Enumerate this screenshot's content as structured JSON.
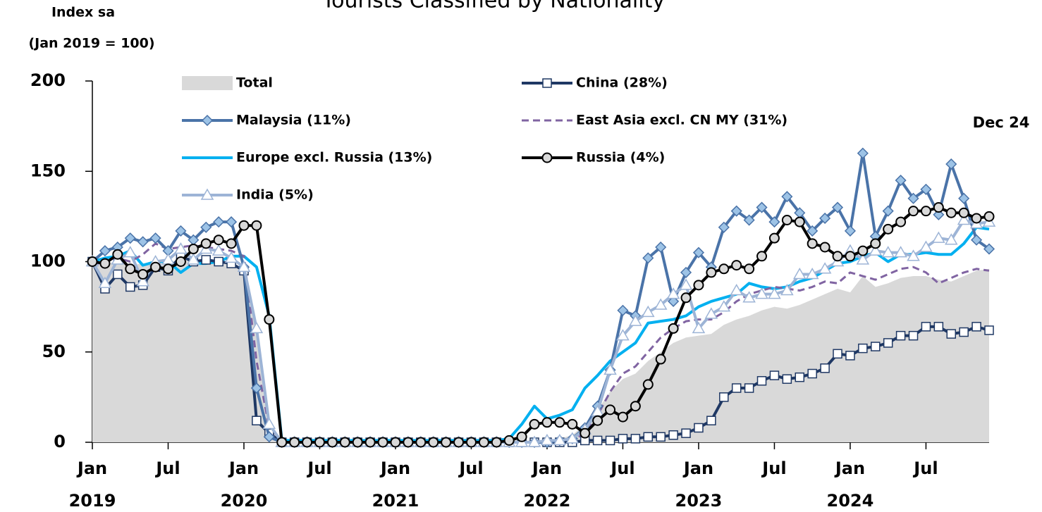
{
  "chart_data": {
    "type": "line",
    "title": "Tourists Classified by Nationality",
    "ylabel": [
      "Index sa",
      "(Jan 2019 = 100)"
    ],
    "annotation": "Dec 24",
    "x": [
      "2019-01",
      "2019-02",
      "2019-03",
      "2019-04",
      "2019-05",
      "2019-06",
      "2019-07",
      "2019-08",
      "2019-09",
      "2019-10",
      "2019-11",
      "2019-12",
      "2020-01",
      "2020-02",
      "2020-03",
      "2020-04",
      "2020-05",
      "2020-06",
      "2020-07",
      "2020-08",
      "2020-09",
      "2020-10",
      "2020-11",
      "2020-12",
      "2021-01",
      "2021-02",
      "2021-03",
      "2021-04",
      "2021-05",
      "2021-06",
      "2021-07",
      "2021-08",
      "2021-09",
      "2021-10",
      "2021-11",
      "2021-12",
      "2022-01",
      "2022-02",
      "2022-03",
      "2022-04",
      "2022-05",
      "2022-06",
      "2022-07",
      "2022-08",
      "2022-09",
      "2022-10",
      "2022-11",
      "2022-12",
      "2023-01",
      "2023-02",
      "2023-03",
      "2023-04",
      "2023-05",
      "2023-06",
      "2023-07",
      "2023-08",
      "2023-09",
      "2023-10",
      "2023-11",
      "2023-12",
      "2024-01",
      "2024-02",
      "2024-03",
      "2024-04",
      "2024-05",
      "2024-06",
      "2024-07",
      "2024-08",
      "2024-09",
      "2024-10",
      "2024-11",
      "2024-12"
    ],
    "xticks": [
      {
        "value": "2019-01",
        "label": "Jan"
      },
      {
        "value": "2019-07",
        "label": "Jul"
      },
      {
        "value": "2020-01",
        "label": "Jan"
      },
      {
        "value": "2020-07",
        "label": "Jul"
      },
      {
        "value": "2021-01",
        "label": "Jan"
      },
      {
        "value": "2021-07",
        "label": "Jul"
      },
      {
        "value": "2022-01",
        "label": "Jan"
      },
      {
        "value": "2022-07",
        "label": "Jul"
      },
      {
        "value": "2023-01",
        "label": "Jan"
      },
      {
        "value": "2023-07",
        "label": "Jul"
      },
      {
        "value": "2024-01",
        "label": "Jan"
      },
      {
        "value": "2024-07",
        "label": "Jul"
      }
    ],
    "year_labels": [
      {
        "value": "2019-01",
        "label": "2019"
      },
      {
        "value": "2020-01",
        "label": "2020"
      },
      {
        "value": "2021-01",
        "label": "2021"
      },
      {
        "value": "2022-01",
        "label": "2022"
      },
      {
        "value": "2023-01",
        "label": "2023"
      },
      {
        "value": "2024-01",
        "label": "2024"
      }
    ],
    "ylim": [
      0,
      200
    ],
    "yticks": [
      0,
      50,
      100,
      150,
      200
    ],
    "series": [
      {
        "name": "Total",
        "kind": "area",
        "color": "#d9d9d9",
        "values": [
          100,
          99,
          100,
          98,
          99,
          100,
          100,
          101,
          100,
          100,
          99,
          99,
          95,
          60,
          10,
          0,
          0,
          0,
          0,
          0,
          0,
          0,
          0,
          0,
          0,
          0,
          0,
          0,
          0,
          0,
          0,
          0,
          0,
          1,
          1,
          1,
          1,
          2,
          4,
          10,
          18,
          28,
          35,
          38,
          45,
          50,
          55,
          58,
          59,
          60,
          65,
          68,
          70,
          73,
          75,
          74,
          76,
          79,
          82,
          85,
          83,
          92,
          86,
          88,
          91,
          92,
          92,
          90,
          89,
          92,
          95,
          96
        ]
      },
      {
        "name": "China (28%)",
        "marker": "square",
        "color": "#1f3864",
        "values": [
          100,
          85,
          93,
          86,
          87,
          97,
          95,
          103,
          100,
          101,
          100,
          99,
          95,
          12,
          5,
          0,
          0,
          0,
          0,
          0,
          0,
          0,
          0,
          0,
          0,
          0,
          0,
          0,
          0,
          0,
          0,
          0,
          0,
          0,
          0,
          0,
          0,
          0,
          0,
          1,
          1,
          1,
          2,
          2,
          3,
          3,
          4,
          5,
          8,
          12,
          25,
          30,
          30,
          34,
          37,
          35,
          36,
          38,
          41,
          49,
          48,
          52,
          53,
          55,
          59,
          59,
          64,
          64,
          60,
          61,
          64,
          62
        ]
      },
      {
        "name": "Malaysia (11%)",
        "marker": "diamond",
        "color": "#4a73a8",
        "values": [
          100,
          106,
          108,
          113,
          111,
          113,
          106,
          117,
          112,
          119,
          122,
          122,
          97,
          30,
          3,
          0,
          0,
          0,
          0,
          0,
          0,
          0,
          0,
          0,
          0,
          0,
          0,
          0,
          0,
          0,
          0,
          0,
          0,
          0,
          0,
          0,
          0,
          1,
          2,
          8,
          20,
          40,
          73,
          70,
          102,
          108,
          78,
          94,
          105,
          97,
          119,
          128,
          123,
          130,
          122,
          136,
          127,
          117,
          124,
          130,
          117,
          160,
          114,
          128,
          145,
          135,
          140,
          126,
          154,
          135,
          112,
          107
        ]
      },
      {
        "name": "East Asia excl. CN MY (31%)",
        "marker": "none",
        "dashed": true,
        "color": "#8064a2",
        "values": [
          100,
          98,
          102,
          100,
          104,
          110,
          107,
          108,
          109,
          108,
          107,
          106,
          103,
          45,
          8,
          0,
          0,
          0,
          0,
          0,
          0,
          0,
          0,
          0,
          0,
          0,
          0,
          0,
          0,
          0,
          0,
          0,
          0,
          0,
          0,
          0,
          0,
          0,
          1,
          5,
          15,
          28,
          38,
          42,
          50,
          58,
          63,
          67,
          68,
          68,
          72,
          78,
          82,
          84,
          86,
          85,
          84,
          86,
          89,
          88,
          94,
          92,
          90,
          93,
          96,
          97,
          94,
          88,
          91,
          94,
          96,
          95
        ]
      },
      {
        "name": "Europe excl. Russia (13%)",
        "marker": "none",
        "color": "#00b0f0",
        "values": [
          100,
          102,
          103,
          106,
          98,
          100,
          100,
          94,
          99,
          99,
          100,
          103,
          103,
          97,
          70,
          1,
          1,
          1,
          1,
          1,
          1,
          1,
          1,
          1,
          1,
          1,
          1,
          1,
          1,
          1,
          1,
          1,
          1,
          2,
          10,
          20,
          13,
          15,
          18,
          30,
          37,
          45,
          50,
          55,
          66,
          67,
          68,
          70,
          75,
          78,
          80,
          82,
          88,
          86,
          85,
          86,
          89,
          91,
          95,
          99,
          100,
          103,
          105,
          100,
          104,
          104,
          105,
          104,
          104,
          110,
          119,
          118
        ]
      },
      {
        "name": "Russia (4%)",
        "marker": "circle",
        "color": "#000000",
        "values": [
          100,
          99,
          104,
          96,
          93,
          97,
          96,
          100,
          107,
          110,
          112,
          110,
          120,
          120,
          68,
          0,
          0,
          0,
          0,
          0,
          0,
          0,
          0,
          0,
          0,
          0,
          0,
          0,
          0,
          0,
          0,
          0,
          0,
          1,
          3,
          10,
          11,
          11,
          10,
          5,
          12,
          18,
          14,
          20,
          32,
          46,
          63,
          80,
          87,
          94,
          96,
          98,
          96,
          103,
          113,
          123,
          122,
          110,
          108,
          103,
          103,
          106,
          110,
          118,
          122,
          128,
          128,
          130,
          127,
          127,
          124,
          125
        ]
      },
      {
        "name": "India (5%)",
        "marker": "triangle",
        "color": "#9db4d6",
        "values": [
          100,
          88,
          101,
          105,
          89,
          100,
          101,
          107,
          101,
          107,
          106,
          102,
          97,
          63,
          10,
          0,
          0,
          0,
          0,
          0,
          0,
          0,
          0,
          0,
          0,
          0,
          0,
          0,
          0,
          0,
          0,
          0,
          0,
          0,
          0,
          0,
          1,
          1,
          2,
          7,
          17,
          40,
          59,
          67,
          72,
          76,
          82,
          87,
          63,
          71,
          75,
          84,
          80,
          82,
          82,
          84,
          93,
          93,
          96,
          100,
          106,
          101,
          106,
          105,
          105,
          103,
          108,
          113,
          112,
          123,
          121,
          122
        ]
      }
    ]
  }
}
